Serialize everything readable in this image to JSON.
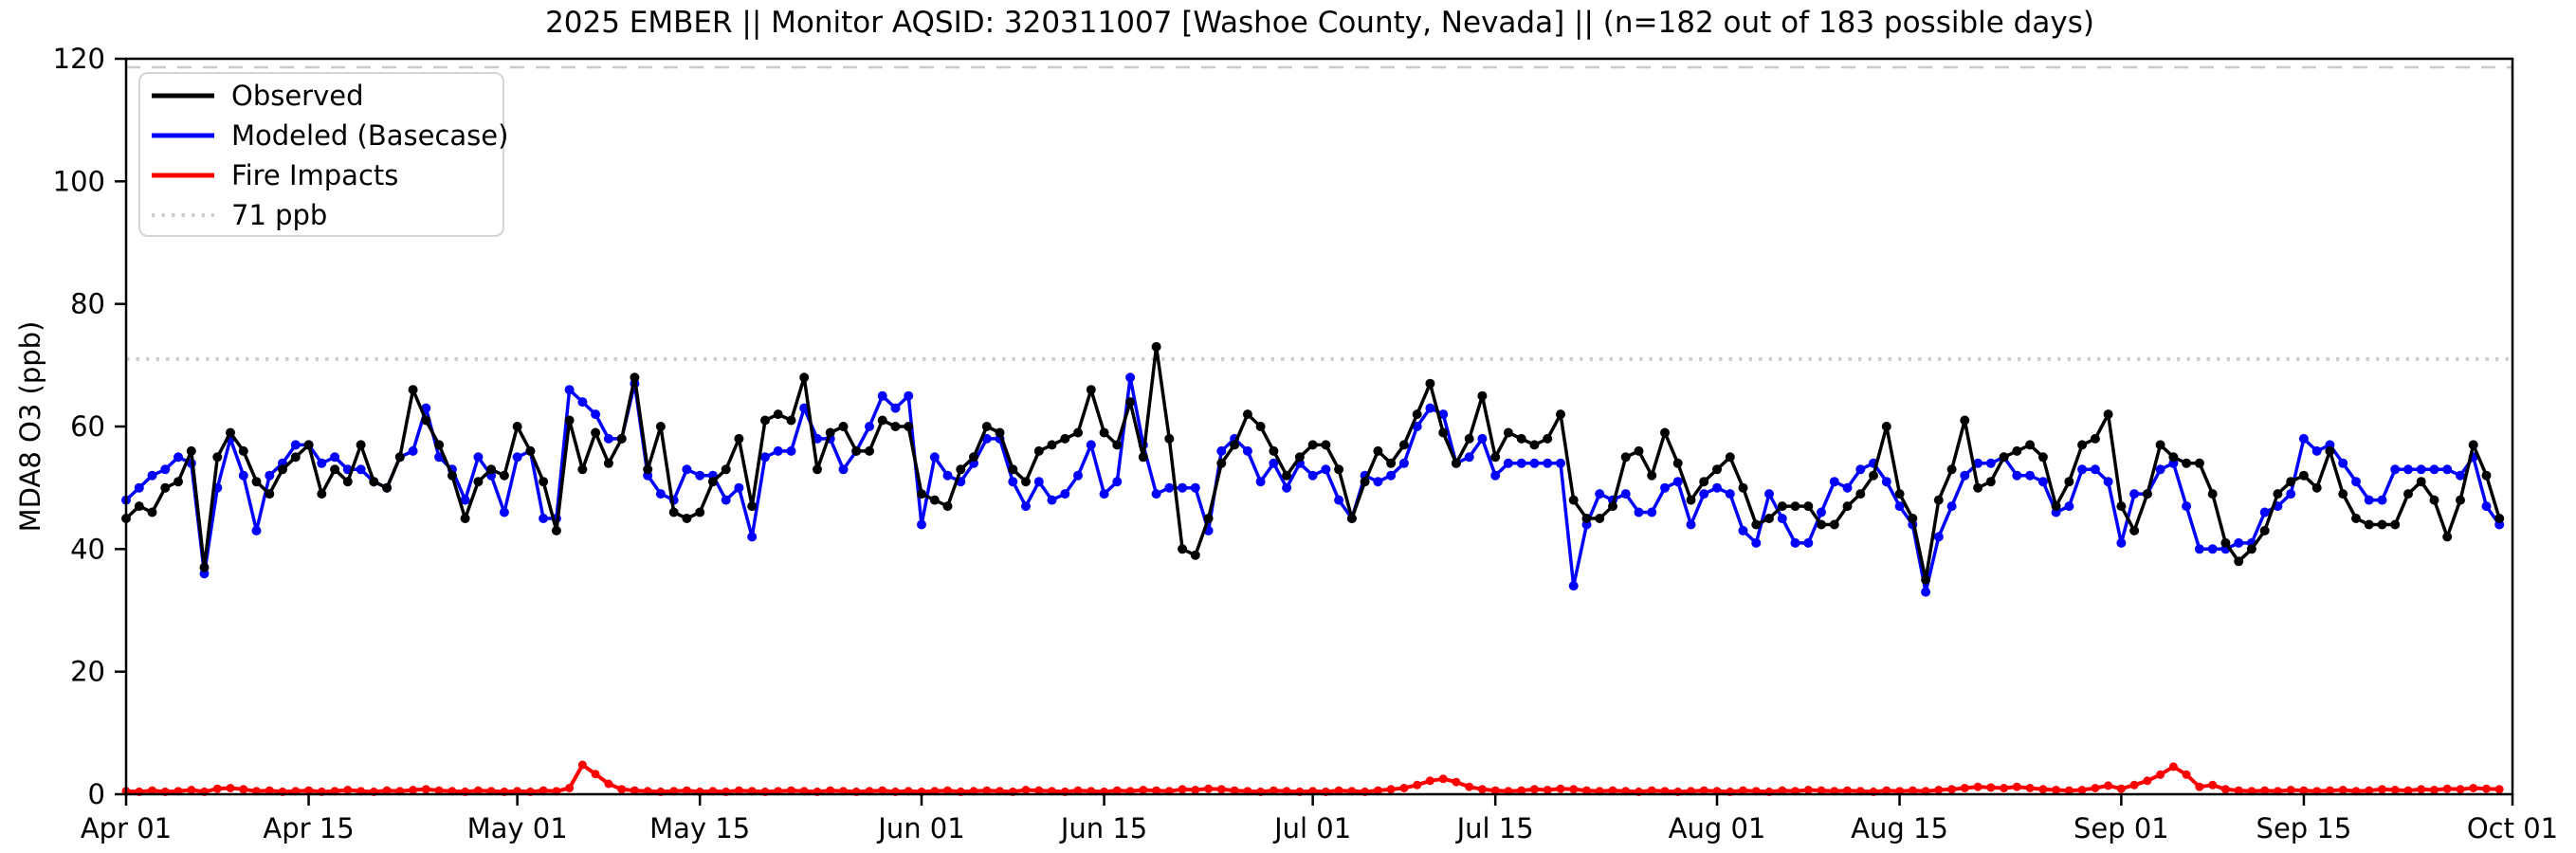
{
  "title": "2025 EMBER || Monitor AQSID: 320311007 [Washoe County, Nevada] || (n=182 out of 183 possible days)",
  "chart_data": {
    "type": "line",
    "title": "2025 EMBER || Monitor AQSID: 320311007 [Washoe County, Nevada] || (n=182 out of 183 possible days)",
    "xlabel": "",
    "ylabel": "MDA8 O3 (ppb)",
    "ylim": [
      0,
      120
    ],
    "yticks": [
      0,
      20,
      40,
      60,
      80,
      100,
      120
    ],
    "x_start": "Apr 01",
    "x_end": "Oct 01",
    "frequency": "daily",
    "n_days": 183,
    "xtick_labels": [
      "Apr 01",
      "Apr 15",
      "May 01",
      "May 15",
      "Jun 01",
      "Jun 15",
      "Jul 01",
      "Jul 15",
      "Aug 01",
      "Aug 15",
      "Sep 01",
      "Sep 15",
      "Oct 01"
    ],
    "xtick_day_index": [
      1,
      15,
      31,
      45,
      62,
      76,
      92,
      106,
      123,
      137,
      154,
      168,
      184
    ],
    "grid": false,
    "legend_position": "upper left",
    "threshold": {
      "value": 71,
      "label": "71 ppb",
      "color": "#cccccc",
      "style": "dotted"
    },
    "top_dashed_line_ppb": 118.6,
    "series": [
      {
        "name": "Observed",
        "color": "#000000",
        "values": [
          45,
          47,
          46,
          50,
          51,
          56,
          37,
          55,
          59,
          56,
          51,
          49,
          53,
          55,
          57,
          49,
          53,
          51,
          57,
          51,
          50,
          55,
          66,
          61,
          57,
          52,
          45,
          51,
          53,
          52,
          60,
          56,
          51,
          43,
          61,
          53,
          59,
          54,
          58,
          68,
          53,
          60,
          46,
          45,
          46,
          51,
          53,
          58,
          47,
          61,
          62,
          61,
          68,
          53,
          59,
          60,
          56,
          56,
          61,
          60,
          60,
          49,
          48,
          47,
          53,
          55,
          60,
          59,
          53,
          51,
          56,
          57,
          58,
          59,
          66,
          59,
          57,
          64,
          55,
          73,
          58,
          40,
          39,
          45,
          54,
          57,
          62,
          60,
          56,
          52,
          55,
          57,
          57,
          53,
          45,
          51,
          56,
          54,
          57,
          62,
          67,
          59,
          54,
          58,
          65,
          55,
          59,
          58,
          57,
          58,
          62,
          48,
          45,
          45,
          47,
          55,
          56,
          52,
          59,
          54,
          48,
          51,
          53,
          55,
          50,
          44,
          45,
          47,
          47,
          47,
          44,
          44,
          47,
          49,
          52,
          60,
          49,
          45,
          35,
          48,
          53,
          61,
          50,
          51,
          55,
          56,
          57,
          55,
          47,
          51,
          57,
          58,
          62,
          47,
          43,
          49,
          57,
          55,
          54,
          54,
          49,
          41,
          38,
          40,
          43,
          49,
          51,
          52,
          50,
          56,
          49,
          45,
          44,
          44,
          44,
          49,
          51,
          48,
          42,
          48,
          57,
          52,
          45
        ]
      },
      {
        "name": "Modeled (Basecase)",
        "color": "#0000ff",
        "values": [
          48,
          50,
          52,
          53,
          55,
          54,
          36,
          50,
          58,
          52,
          43,
          52,
          54,
          57,
          57,
          54,
          55,
          53,
          53,
          51,
          50,
          55,
          56,
          63,
          55,
          53,
          48,
          55,
          52,
          46,
          55,
          56,
          45,
          45,
          66,
          64,
          62,
          58,
          58,
          67,
          52,
          49,
          48,
          53,
          52,
          52,
          48,
          50,
          42,
          55,
          56,
          56,
          63,
          58,
          58,
          53,
          56,
          60,
          65,
          63,
          65,
          44,
          55,
          52,
          51,
          54,
          58,
          58,
          51,
          47,
          51,
          48,
          49,
          52,
          57,
          49,
          51,
          68,
          57,
          49,
          50,
          50,
          50,
          43,
          56,
          58,
          56,
          51,
          54,
          50,
          54,
          52,
          53,
          48,
          45,
          52,
          51,
          52,
          54,
          60,
          63,
          62,
          54,
          55,
          58,
          52,
          54,
          54,
          54,
          54,
          54,
          34,
          44,
          49,
          48,
          49,
          46,
          46,
          50,
          51,
          44,
          49,
          50,
          49,
          43,
          41,
          49,
          45,
          41,
          41,
          46,
          51,
          50,
          53,
          54,
          51,
          47,
          44,
          33,
          42,
          47,
          52,
          54,
          54,
          55,
          52,
          52,
          51,
          46,
          47,
          53,
          53,
          51,
          41,
          49,
          49,
          53,
          54,
          47,
          40,
          40,
          40,
          41,
          41,
          46,
          47,
          49,
          58,
          56,
          57,
          54,
          51,
          48,
          48,
          53,
          53,
          53,
          53,
          53,
          52,
          55,
          47,
          44
        ]
      },
      {
        "name": "Fire Impacts",
        "color": "#ff0000",
        "values": [
          0.5,
          0.4,
          0.6,
          0.4,
          0.5,
          0.7,
          0.4,
          0.9,
          1.0,
          0.8,
          0.5,
          0.6,
          0.4,
          0.5,
          0.6,
          0.4,
          0.5,
          0.7,
          0.5,
          0.4,
          0.6,
          0.5,
          0.7,
          0.8,
          0.6,
          0.5,
          0.4,
          0.6,
          0.5,
          0.4,
          0.5,
          0.4,
          0.6,
          0.5,
          1.0,
          4.8,
          3.3,
          1.7,
          0.8,
          0.6,
          0.5,
          0.4,
          0.5,
          0.6,
          0.4,
          0.5,
          0.4,
          0.6,
          0.5,
          0.4,
          0.5,
          0.6,
          0.5,
          0.4,
          0.6,
          0.5,
          0.4,
          0.5,
          0.6,
          0.4,
          0.5,
          0.4,
          0.5,
          0.6,
          0.4,
          0.5,
          0.6,
          0.5,
          0.4,
          0.7,
          0.6,
          0.5,
          0.4,
          0.6,
          0.5,
          0.4,
          0.6,
          0.5,
          0.7,
          0.6,
          0.5,
          0.8,
          0.7,
          0.9,
          0.8,
          0.6,
          0.5,
          0.4,
          0.6,
          0.5,
          0.4,
          0.5,
          0.4,
          0.6,
          0.5,
          0.4,
          0.6,
          0.8,
          1.0,
          1.5,
          2.2,
          2.5,
          2.0,
          1.2,
          0.8,
          0.6,
          0.5,
          0.6,
          0.8,
          0.7,
          0.9,
          0.8,
          0.6,
          0.5,
          0.6,
          0.5,
          0.4,
          0.6,
          0.5,
          0.4,
          0.5,
          0.6,
          0.5,
          0.4,
          0.6,
          0.5,
          0.4,
          0.6,
          0.5,
          0.7,
          0.6,
          0.5,
          0.6,
          0.5,
          0.4,
          0.6,
          0.5,
          0.6,
          0.5,
          0.7,
          0.8,
          1.0,
          1.2,
          1.1,
          1.0,
          1.2,
          1.0,
          0.8,
          0.7,
          0.6,
          0.7,
          1.0,
          1.4,
          0.9,
          1.5,
          2.2,
          3.2,
          4.5,
          3.2,
          1.2,
          1.5,
          0.8,
          0.6,
          0.5,
          0.6,
          0.5,
          0.7,
          0.6,
          0.5,
          0.6,
          0.7,
          0.5,
          0.6,
          0.8,
          0.7,
          0.6,
          0.8,
          0.7,
          0.9,
          0.8,
          1.0,
          0.9,
          0.8
        ]
      }
    ]
  }
}
